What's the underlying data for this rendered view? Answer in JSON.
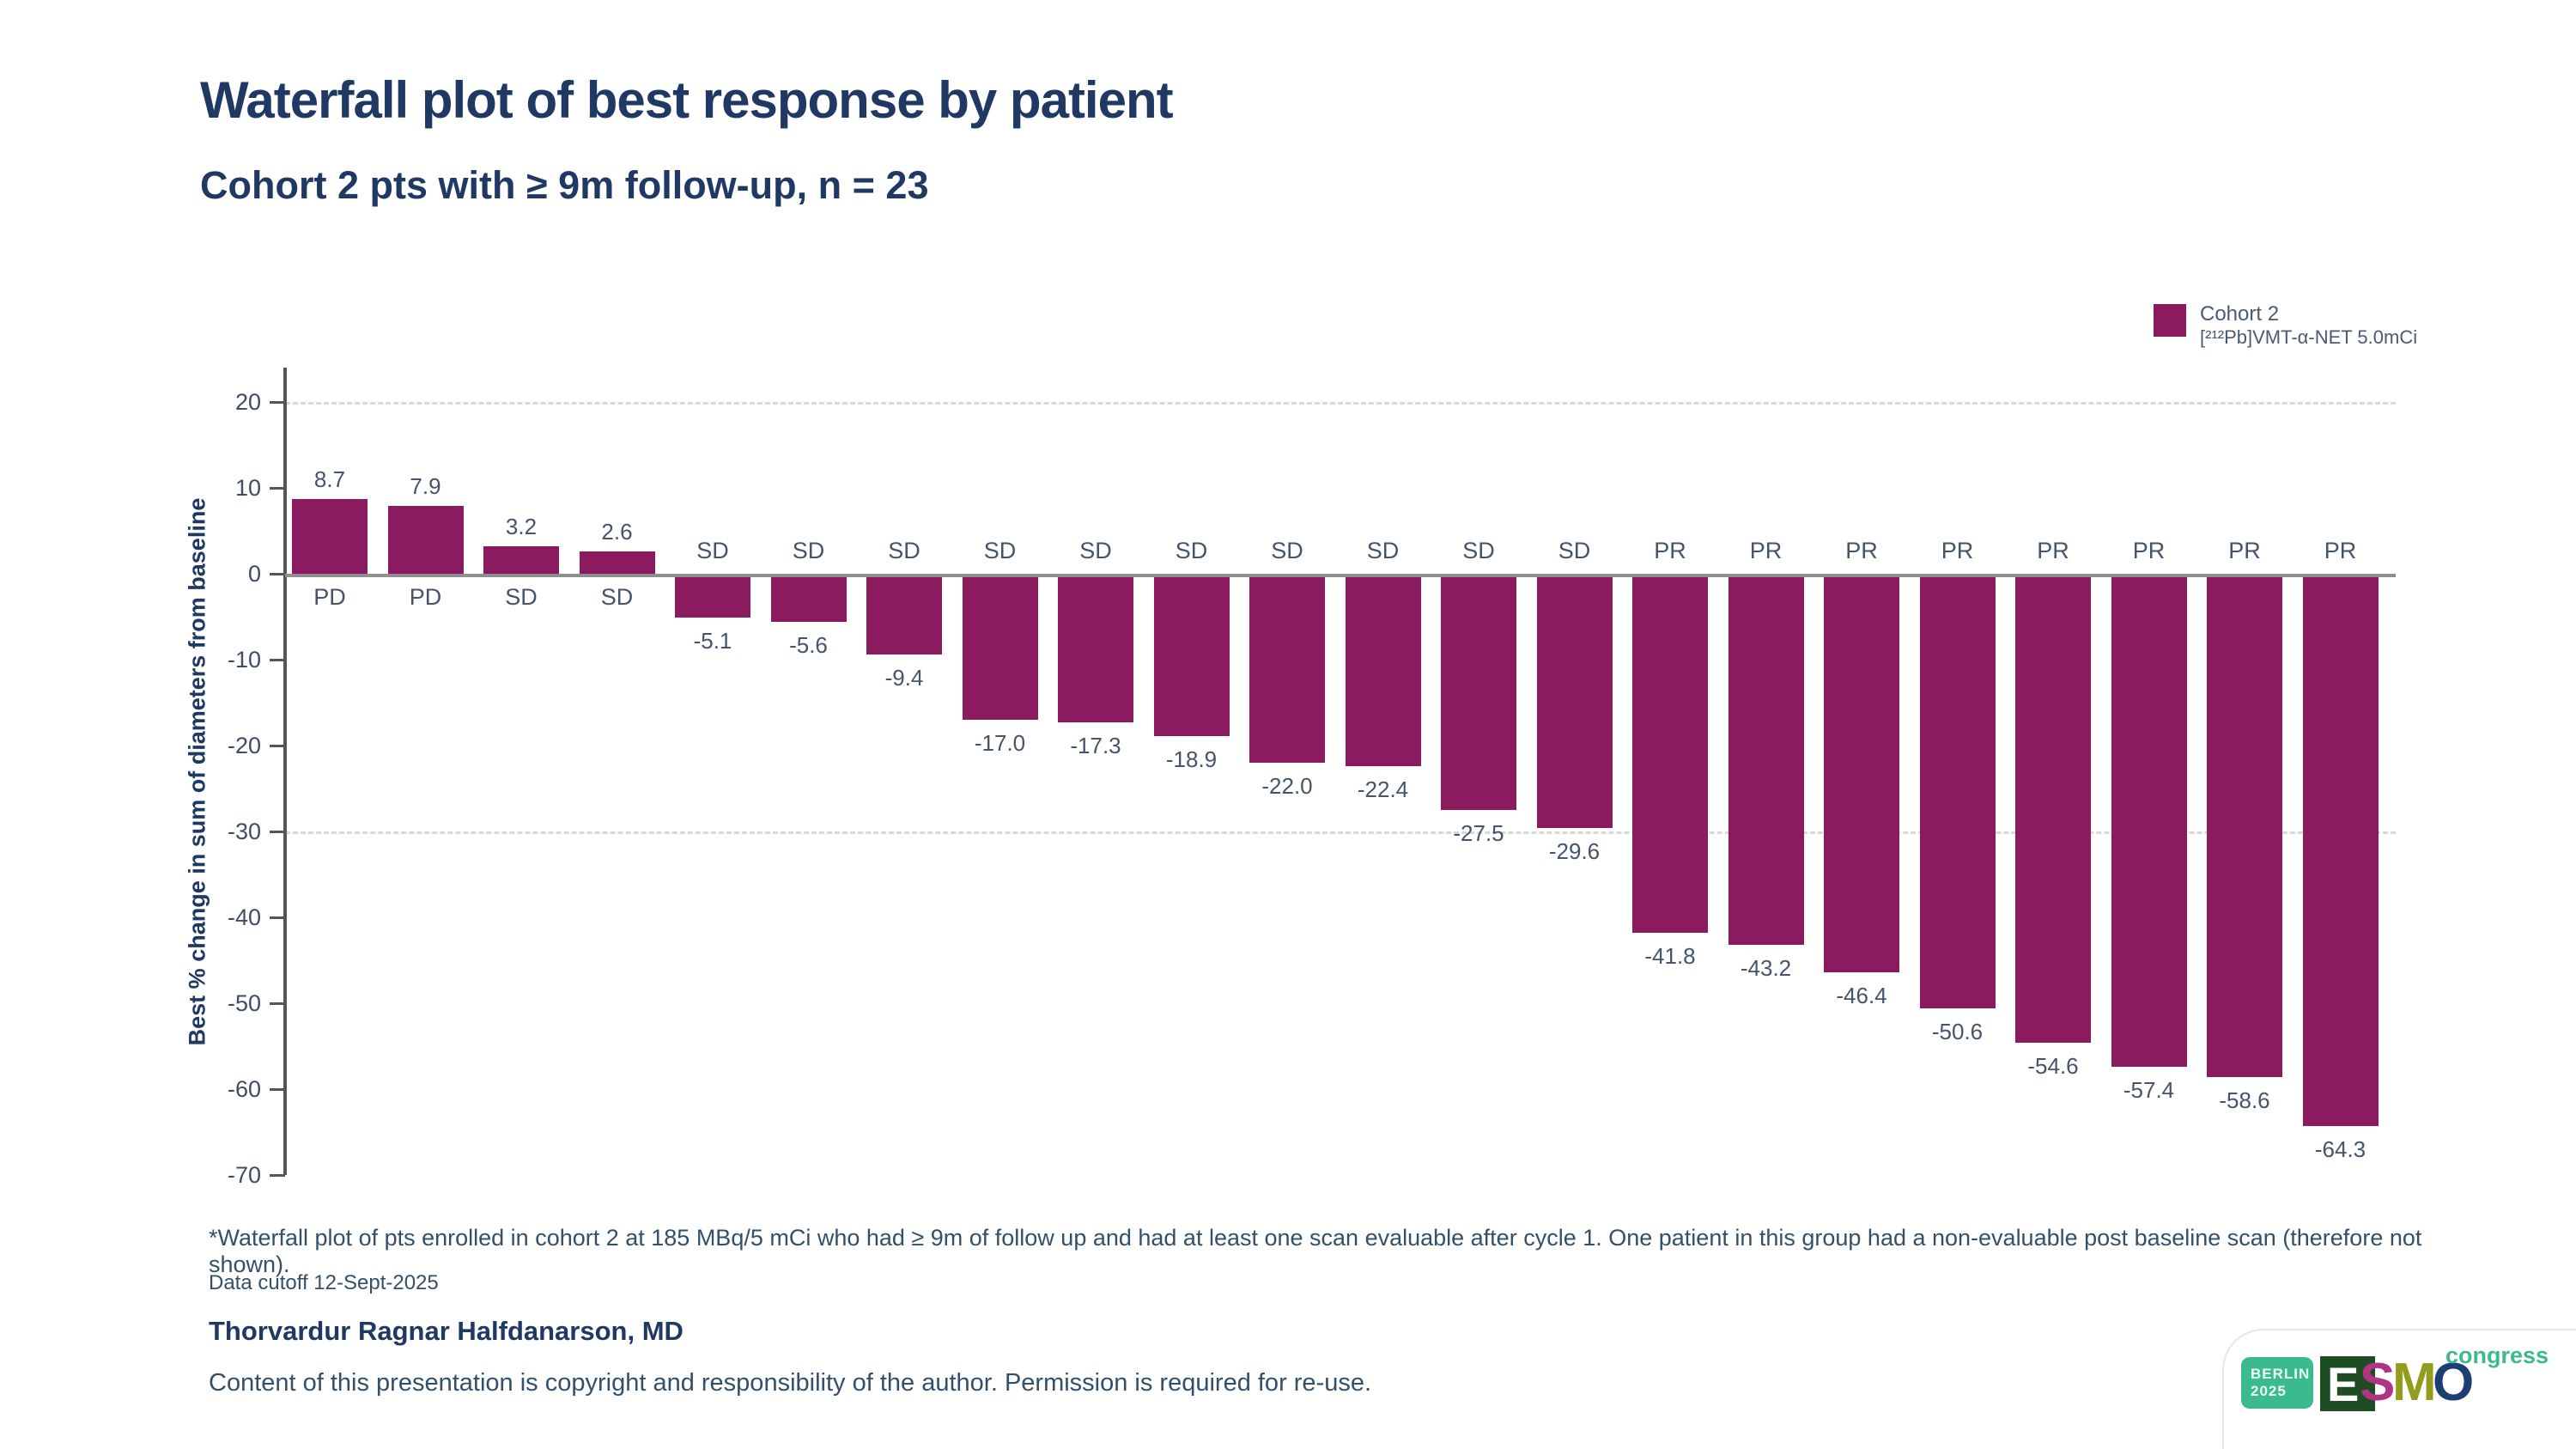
{
  "slide": {
    "title": "Waterfall plot of best response by patient",
    "subtitle": "Cohort 2 pts with ≥ 9m follow-up, n = 23",
    "footnote": "*Waterfall plot of pts enrolled in cohort 2 at 185 MBq/5 mCi who had ≥ 9m of follow up and had at least one scan evaluable after cycle 1. One patient in this group had a non-evaluable post baseline scan (therefore not shown).",
    "data_cutoff": "Data cutoff 12-Sept-2025",
    "author": "Thorvardur Ragnar Halfdanarson, MD",
    "copyright": "Content of this presentation is copyright and responsibility of the author. Permission is required for re-use.",
    "title_color": "#1f3864"
  },
  "legend": {
    "line1": "Cohort 2",
    "line2": "[²¹²Pb]VMT-α-NET 5.0mCi",
    "swatch_color": "#8c1a5e"
  },
  "logo": {
    "badge_line1": "BERLIN",
    "badge_line2": "2025",
    "letter_e": "E",
    "letter_s": "S",
    "letter_m": "M",
    "letter_o": "O",
    "suffix": "congress",
    "colors": {
      "badge": "#3cba8f",
      "e_block": "#1e4d24",
      "s": "#b13383",
      "m": "#939c1d",
      "o": "#1c3e73"
    }
  },
  "chart_data": {
    "type": "bar",
    "title": "Waterfall plot of best response by patient",
    "xlabel": "",
    "ylabel": "Best % change in sum of diameters from baseline",
    "ylim": [
      -70,
      24
    ],
    "yticks": [
      20,
      10,
      0,
      -10,
      -20,
      -30,
      -40,
      -50,
      -60,
      -70
    ],
    "reference_lines": [
      20,
      -30
    ],
    "grid": "dashed thresholds only",
    "legend_position": "top-right",
    "bar_color": "#8c1a5e",
    "patients": [
      {
        "value": 8.7,
        "response": "PD"
      },
      {
        "value": 7.9,
        "response": "PD"
      },
      {
        "value": 3.2,
        "response": "SD"
      },
      {
        "value": 2.6,
        "response": "SD"
      },
      {
        "value": -5.1,
        "response": "SD"
      },
      {
        "value": -5.6,
        "response": "SD"
      },
      {
        "value": -9.4,
        "response": "SD"
      },
      {
        "value": -17.0,
        "response": "SD"
      },
      {
        "value": -17.3,
        "response": "SD"
      },
      {
        "value": -18.9,
        "response": "SD"
      },
      {
        "value": -22.0,
        "response": "SD"
      },
      {
        "value": -22.4,
        "response": "SD"
      },
      {
        "value": -27.5,
        "response": "SD"
      },
      {
        "value": -29.6,
        "response": "SD"
      },
      {
        "value": -41.8,
        "response": "PR"
      },
      {
        "value": -43.2,
        "response": "PR"
      },
      {
        "value": -46.4,
        "response": "PR"
      },
      {
        "value": -50.6,
        "response": "PR"
      },
      {
        "value": -54.6,
        "response": "PR"
      },
      {
        "value": -57.4,
        "response": "PR"
      },
      {
        "value": -58.6,
        "response": "PR"
      },
      {
        "value": -64.3,
        "response": "PR"
      }
    ]
  }
}
